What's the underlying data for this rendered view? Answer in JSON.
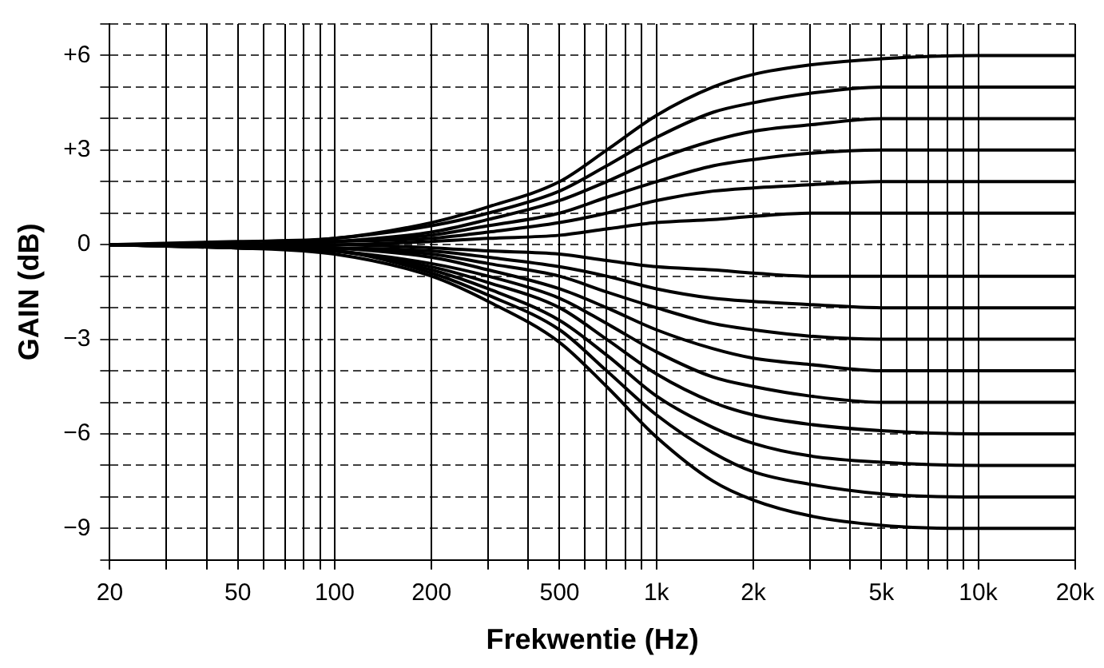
{
  "chart_data": {
    "type": "line",
    "xlabel": "Frekwentie (Hz)",
    "ylabel": "GAIN (dB)",
    "log": "x",
    "grid": true,
    "legend": false,
    "marker": "none",
    "line_style": "solid",
    "x": [
      20,
      50,
      100,
      200,
      300,
      500,
      700,
      1000,
      1500,
      2000,
      3000,
      5000,
      10000,
      20000
    ],
    "xlim": [
      20,
      20000
    ],
    "xticks": [
      20,
      {
        "value": 30,
        "label": null
      },
      {
        "value": 40,
        "label": null
      },
      50,
      {
        "value": 60,
        "label": null
      },
      {
        "value": 70,
        "label": null
      },
      {
        "value": 80,
        "label": null
      },
      {
        "value": 90,
        "label": null
      },
      100,
      200,
      {
        "value": 300,
        "label": null
      },
      {
        "value": 400,
        "label": null
      },
      500,
      {
        "value": 600,
        "label": null
      },
      {
        "value": 700,
        "label": null
      },
      {
        "value": 800,
        "label": null
      },
      {
        "value": 900,
        "label": null
      },
      {
        "value": 1000,
        "label": "1k"
      },
      {
        "value": 2000,
        "label": "2k"
      },
      {
        "value": 3000,
        "label": null
      },
      {
        "value": 4000,
        "label": null
      },
      {
        "value": 5000,
        "label": "5k"
      },
      {
        "value": 6000,
        "label": null
      },
      {
        "value": 7000,
        "label": null
      },
      {
        "value": 8000,
        "label": null
      },
      {
        "value": 9000,
        "label": null
      },
      {
        "value": 10000,
        "label": "10k"
      },
      {
        "value": 20000,
        "label": "20k"
      }
    ],
    "ylim": [
      -10,
      7
    ],
    "yticks": [
      {
        "value": -10,
        "label": null
      },
      {
        "value": -9,
        "label": "−9"
      },
      {
        "value": -8,
        "label": null
      },
      {
        "value": -7,
        "label": null
      },
      {
        "value": -6,
        "label": "−6"
      },
      {
        "value": -5,
        "label": null
      },
      {
        "value": -4,
        "label": null
      },
      {
        "value": -3,
        "label": "−3"
      },
      {
        "value": -2,
        "label": null
      },
      {
        "value": -1,
        "label": null
      },
      0,
      {
        "value": 1,
        "label": null
      },
      {
        "value": 2,
        "label": null
      },
      {
        "value": 3,
        "label": "+3"
      },
      {
        "value": 4,
        "label": null
      },
      {
        "value": 5,
        "label": null
      },
      {
        "value": 6,
        "label": "+6"
      },
      {
        "value": 7,
        "label": null
      }
    ],
    "series": [
      {
        "color": "#000000",
        "values": [
          0,
          0.1,
          0.2,
          0.7,
          1.2,
          2,
          3,
          4.1,
          5,
          5.4,
          5.7,
          5.9,
          6,
          6
        ]
      },
      {
        "color": "#000000",
        "values": [
          0,
          0,
          0.2,
          0.6,
          1,
          1.7,
          2.5,
          3.4,
          4.2,
          4.5,
          4.8,
          5,
          5,
          5
        ]
      },
      {
        "color": "#000000",
        "values": [
          0,
          0,
          0.1,
          0.4,
          0.8,
          1.4,
          2,
          2.7,
          3.3,
          3.6,
          3.8,
          4,
          4,
          4
        ]
      },
      {
        "color": "#000000",
        "values": [
          0,
          0,
          0.1,
          0.3,
          0.6,
          1,
          1.5,
          2,
          2.5,
          2.7,
          2.9,
          3,
          3,
          3
        ]
      },
      {
        "color": "#000000",
        "values": [
          0,
          0,
          0.1,
          0.2,
          0.4,
          0.7,
          1,
          1.4,
          1.7,
          1.8,
          1.9,
          2,
          2,
          2
        ]
      },
      {
        "color": "#000000",
        "values": [
          0,
          0,
          0,
          0.1,
          0.2,
          0.3,
          0.5,
          0.7,
          0.8,
          0.9,
          1,
          1,
          1,
          1
        ]
      },
      {
        "color": "#000000",
        "values": [
          0,
          0,
          0,
          -0.1,
          -0.2,
          -0.3,
          -0.5,
          -0.7,
          -0.8,
          -0.9,
          -1,
          -1,
          -1,
          -1
        ]
      },
      {
        "color": "#000000",
        "values": [
          0,
          0,
          -0.1,
          -0.2,
          -0.4,
          -0.7,
          -1,
          -1.4,
          -1.7,
          -1.8,
          -1.9,
          -2,
          -2,
          -2
        ]
      },
      {
        "color": "#000000",
        "values": [
          0,
          0,
          -0.1,
          -0.3,
          -0.6,
          -1,
          -1.5,
          -2,
          -2.5,
          -2.7,
          -2.9,
          -3,
          -3,
          -3
        ]
      },
      {
        "color": "#000000",
        "values": [
          0,
          0,
          -0.1,
          -0.4,
          -0.8,
          -1.4,
          -2,
          -2.7,
          -3.3,
          -3.6,
          -3.8,
          -4,
          -4,
          -4
        ]
      },
      {
        "color": "#000000",
        "values": [
          0,
          0,
          -0.2,
          -0.6,
          -1,
          -1.7,
          -2.5,
          -3.4,
          -4.2,
          -4.5,
          -4.8,
          -5,
          -5,
          -5
        ]
      },
      {
        "color": "#000000",
        "values": [
          0,
          -0.1,
          -0.2,
          -0.7,
          -1.2,
          -2,
          -3,
          -4.1,
          -5,
          -5.4,
          -5.7,
          -5.9,
          -6,
          -6
        ]
      },
      {
        "color": "#000000",
        "values": [
          0,
          -0.1,
          -0.2,
          -0.8,
          -1.4,
          -2.4,
          -3.5,
          -4.8,
          -5.8,
          -6.3,
          -6.7,
          -6.9,
          -7,
          -7
        ]
      },
      {
        "color": "#000000",
        "values": [
          0,
          -0.1,
          -0.2,
          -0.9,
          -1.6,
          -2.7,
          -4,
          -5.4,
          -6.6,
          -7.2,
          -7.6,
          -7.9,
          -8,
          -8
        ]
      },
      {
        "color": "#000000",
        "values": [
          0,
          -0.1,
          -0.3,
          -1,
          -1.8,
          -3.1,
          -4.5,
          -6.1,
          -7.5,
          -8.1,
          -8.6,
          -8.9,
          -9,
          -9
        ]
      }
    ]
  }
}
